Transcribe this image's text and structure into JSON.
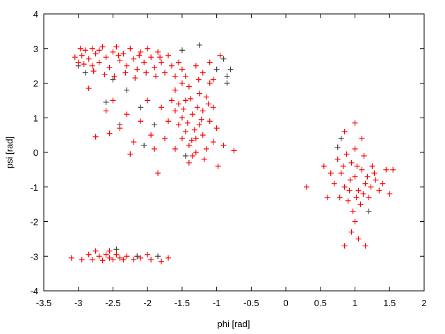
{
  "chart_data": {
    "type": "scatter",
    "title": "",
    "xlabel": "phi [rad]",
    "ylabel": "psi [rad]",
    "xlim": [
      -3.5,
      2
    ],
    "ylim": [
      -4,
      4
    ],
    "x_ticks": [
      "-3.5",
      "-3",
      "-2.5",
      "-2",
      "-1.5",
      "-1",
      "-0.5",
      "0",
      "0.5",
      "1",
      "1.5",
      "2"
    ],
    "y_ticks": [
      "-4",
      "-3",
      "-2",
      "-1",
      "0",
      "1",
      "2",
      "3",
      "4"
    ],
    "grid": false,
    "legend": "none",
    "marker": "plus",
    "series": [
      {
        "color": "#404040",
        "points": [
          [
            -3.0,
            2.5
          ],
          [
            -2.9,
            2.3
          ],
          [
            -2.5,
            2.1
          ],
          [
            -2.3,
            1.8
          ],
          [
            -2.1,
            1.3
          ],
          [
            -1.9,
            0.8
          ],
          [
            -2.4,
            0.8
          ],
          [
            -1.0,
            2.4
          ],
          [
            -0.85,
            2.0
          ],
          [
            -0.8,
            2.4
          ],
          [
            -1.45,
            -0.1
          ],
          [
            -1.5,
            2.95
          ],
          [
            0.8,
            0.4
          ],
          [
            0.75,
            0.15
          ],
          [
            1.2,
            -1.7
          ],
          [
            -2.45,
            -2.8
          ],
          [
            -2.15,
            -3.0
          ],
          [
            -1.85,
            -3.0
          ],
          [
            -2.6,
            1.45
          ],
          [
            -2.05,
            0.2
          ],
          [
            -0.9,
            2.7
          ],
          [
            -1.25,
            3.1
          ],
          [
            -0.85,
            2.2
          ]
        ]
      },
      {
        "color": "#ff0000",
        "points": [
          [
            -3.0,
            2.6
          ],
          [
            -2.95,
            2.8
          ],
          [
            -2.9,
            2.95
          ],
          [
            -2.85,
            2.7
          ],
          [
            -2.8,
            2.5
          ],
          [
            -2.8,
            3.0
          ],
          [
            -2.75,
            2.85
          ],
          [
            -2.7,
            2.6
          ],
          [
            -2.65,
            3.05
          ],
          [
            -2.6,
            2.75
          ],
          [
            -2.55,
            2.45
          ],
          [
            -2.5,
            2.9
          ],
          [
            -2.45,
            3.05
          ],
          [
            -2.4,
            2.65
          ],
          [
            -2.35,
            2.85
          ],
          [
            -2.3,
            2.5
          ],
          [
            -2.25,
            3.0
          ],
          [
            -2.2,
            2.7
          ],
          [
            -2.15,
            2.4
          ],
          [
            -2.1,
            2.9
          ],
          [
            -2.05,
            2.6
          ],
          [
            -2.0,
            3.0
          ],
          [
            -1.95,
            2.75
          ],
          [
            -1.9,
            2.45
          ],
          [
            -1.85,
            2.9
          ],
          [
            -1.8,
            2.6
          ],
          [
            -1.75,
            2.3
          ],
          [
            -1.7,
            2.8
          ],
          [
            -1.65,
            2.5
          ],
          [
            -1.6,
            2.2
          ],
          [
            -3.05,
            2.75
          ],
          [
            -2.92,
            2.55
          ],
          [
            -2.78,
            2.35
          ],
          [
            -2.62,
            2.25
          ],
          [
            -2.48,
            2.2
          ],
          [
            -2.32,
            2.3
          ],
          [
            -2.18,
            2.15
          ],
          [
            -2.02,
            2.3
          ],
          [
            -1.88,
            2.2
          ],
          [
            -2.97,
            3.0
          ],
          [
            -2.7,
            2.95
          ],
          [
            -2.42,
            2.8
          ],
          [
            -2.12,
            2.8
          ],
          [
            -1.82,
            2.75
          ],
          [
            -1.55,
            2.6
          ],
          [
            -1.5,
            2.4
          ],
          [
            -1.45,
            2.2
          ],
          [
            -1.3,
            2.5
          ],
          [
            -1.2,
            2.3
          ],
          [
            -1.05,
            2.1
          ],
          [
            -0.95,
            2.8
          ],
          [
            -1.1,
            2.6
          ],
          [
            -2.85,
            1.85
          ],
          [
            -2.6,
            1.2
          ],
          [
            -2.5,
            1.5
          ],
          [
            -2.4,
            0.7
          ],
          [
            -2.75,
            0.45
          ],
          [
            -2.3,
            1.1
          ],
          [
            -2.2,
            0.3
          ],
          [
            -2.0,
            1.5
          ],
          [
            -1.95,
            0.5
          ],
          [
            -1.85,
            -0.6
          ],
          [
            -2.1,
            0.9
          ],
          [
            -2.55,
            0.55
          ],
          [
            -2.25,
            -0.05
          ],
          [
            -0.75,
            0.05
          ],
          [
            -1.6,
            1.8
          ],
          [
            -1.55,
            1.4
          ],
          [
            -1.5,
            1.0
          ],
          [
            -1.45,
            0.6
          ],
          [
            -1.4,
            0.2
          ],
          [
            -1.35,
            -0.1
          ],
          [
            -1.3,
            0.4
          ],
          [
            -1.25,
            0.8
          ],
          [
            -1.2,
            1.2
          ],
          [
            -1.15,
            1.6
          ],
          [
            -1.1,
            2.0
          ],
          [
            -1.05,
            1.3
          ],
          [
            -1.0,
            0.7
          ],
          [
            -1.6,
            1.2
          ],
          [
            -1.55,
            0.8
          ],
          [
            -1.5,
            0.4
          ],
          [
            -1.45,
            1.5
          ],
          [
            -1.4,
            1.9
          ],
          [
            -1.35,
            1.1
          ],
          [
            -1.3,
            0.0
          ],
          [
            -1.25,
            1.7
          ],
          [
            -1.2,
            0.5
          ],
          [
            -1.15,
            0.1
          ],
          [
            -1.1,
            0.9
          ],
          [
            -1.05,
            0.3
          ],
          [
            -1.65,
            1.5
          ],
          [
            -1.7,
            0.9
          ],
          [
            -1.75,
            0.4
          ],
          [
            -1.8,
            1.3
          ],
          [
            -1.5,
            2.0
          ],
          [
            -1.38,
            1.55
          ],
          [
            -1.28,
            1.3
          ],
          [
            -1.22,
            0.95
          ],
          [
            -1.42,
            0.85
          ],
          [
            -1.48,
            1.25
          ],
          [
            -1.32,
            0.65
          ],
          [
            -1.18,
            -0.2
          ],
          [
            -1.4,
            -0.3
          ],
          [
            -0.98,
            -0.4
          ],
          [
            -0.9,
            0.2
          ],
          [
            -1.6,
            0.1
          ],
          [
            -1.9,
            0.1
          ],
          [
            -1.12,
            1.4
          ],
          [
            -1.36,
            0.35
          ],
          [
            -1.26,
            2.1
          ],
          [
            0.75,
            -0.2
          ],
          [
            0.8,
            -0.6
          ],
          [
            0.85,
            -1.0
          ],
          [
            0.9,
            -1.4
          ],
          [
            0.95,
            -0.3
          ],
          [
            1.0,
            0.1
          ],
          [
            1.0,
            -0.7
          ],
          [
            1.05,
            -1.1
          ],
          [
            1.1,
            -0.5
          ],
          [
            1.15,
            -0.9
          ],
          [
            1.2,
            -1.3
          ],
          [
            1.25,
            -0.4
          ],
          [
            1.3,
            -0.8
          ],
          [
            1.35,
            -1.1
          ],
          [
            0.7,
            -0.9
          ],
          [
            0.78,
            -1.3
          ],
          [
            0.88,
            -0.05
          ],
          [
            0.93,
            -0.8
          ],
          [
            0.97,
            -1.7
          ],
          [
            1.03,
            -0.4
          ],
          [
            1.08,
            -1.5
          ],
          [
            1.13,
            -0.1
          ],
          [
            1.18,
            -0.7
          ],
          [
            1.23,
            -1.0
          ],
          [
            0.83,
            -0.4
          ],
          [
            0.92,
            -1.1
          ],
          [
            1.02,
            -1.3
          ],
          [
            1.12,
            -1.2
          ],
          [
            1.28,
            -0.6
          ],
          [
            0.65,
            -0.6
          ],
          [
            1.4,
            -0.9
          ],
          [
            1.45,
            -0.5
          ],
          [
            0.6,
            -1.3
          ],
          [
            1.0,
            -2.0
          ],
          [
            0.95,
            -2.3
          ],
          [
            1.05,
            -2.5
          ],
          [
            0.85,
            -2.7
          ],
          [
            1.15,
            -2.7
          ],
          [
            1.0,
            0.85
          ],
          [
            0.85,
            0.6
          ],
          [
            1.1,
            0.4
          ],
          [
            0.3,
            -1.0
          ],
          [
            1.55,
            -0.5
          ],
          [
            0.55,
            -0.4
          ],
          [
            1.5,
            -1.2
          ],
          [
            -3.1,
            -3.05
          ],
          [
            -2.95,
            -3.1
          ],
          [
            -2.85,
            -2.95
          ],
          [
            -2.8,
            -3.1
          ],
          [
            -2.7,
            -3.0
          ],
          [
            -2.65,
            -3.12
          ],
          [
            -2.6,
            -2.95
          ],
          [
            -2.55,
            -3.05
          ],
          [
            -2.5,
            -3.1
          ],
          [
            -2.45,
            -2.95
          ],
          [
            -2.4,
            -3.05
          ],
          [
            -2.35,
            -3.1
          ],
          [
            -2.3,
            -3.0
          ],
          [
            -2.2,
            -3.1
          ],
          [
            -2.1,
            -3.05
          ],
          [
            -2.0,
            -2.95
          ],
          [
            -1.95,
            -3.1
          ],
          [
            -1.8,
            -3.15
          ],
          [
            -1.7,
            -3.05
          ],
          [
            -2.75,
            -2.85
          ],
          [
            -2.55,
            -2.85
          ]
        ]
      }
    ]
  }
}
